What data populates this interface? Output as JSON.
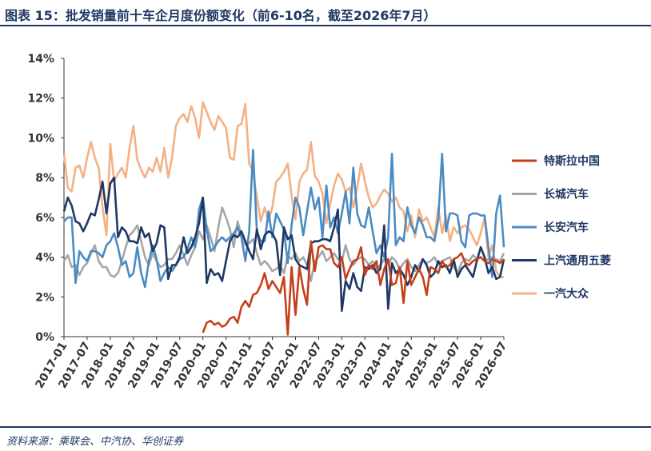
{
  "header": {
    "title": "图表 15：批发销量前十车企月度份额变化（前6-10名，截至2026年7月）"
  },
  "footer": {
    "source": "资料来源：乘联会、中汽协、华创证券"
  },
  "chart_data": {
    "type": "line",
    "title": "图表 15：批发销量前十车企月度份额变化（前6-10名，截至2026年7月）",
    "xlabel": "",
    "ylabel": "",
    "ylim": [
      0,
      14
    ],
    "yticks": [
      0,
      2,
      4,
      6,
      8,
      10,
      12,
      14
    ],
    "ytick_format": "%",
    "x_start": "2017-01",
    "n_months": 115,
    "xtick_labels": [
      "2017-01",
      "2017-07",
      "2018-01",
      "2018-07",
      "2019-01",
      "2019-07",
      "2020-01",
      "2020-07",
      "2021-01",
      "2021-07",
      "2022-01",
      "2022-07",
      "2023-01",
      "2023-07",
      "2024-01",
      "2024-07",
      "2025-01",
      "2025-07",
      "2026-01",
      "2026-07"
    ],
    "grid": false,
    "legend_position": "right",
    "series": [
      {
        "name": "特斯拉中国",
        "color": "#c5401a",
        "start_index": 36,
        "values": [
          0.2,
          0.7,
          0.8,
          0.6,
          0.7,
          0.5,
          0.6,
          0.9,
          1.0,
          0.7,
          1.5,
          1.8,
          1.5,
          2.1,
          2.2,
          2.6,
          3.2,
          2.4,
          2.8,
          2.5,
          2.2,
          3.0,
          0.1,
          3.5,
          1.1,
          3.5,
          2.4,
          1.6,
          4.8,
          3.3,
          4.5,
          4.6,
          4.4,
          4.4,
          3.7,
          3.5,
          4.0,
          2.9,
          3.4,
          3.8,
          3.9,
          4.5,
          3.1,
          3.6,
          3.4,
          3.8,
          2.6,
          3.4,
          3.9,
          2.6,
          2.7,
          3.5,
          1.7,
          3.8,
          2.6,
          3.0,
          3.4,
          3.0,
          2.1,
          3.5,
          3.4,
          3.2,
          3.8,
          3.5,
          3.6,
          3.9,
          4.0,
          4.2,
          3.7,
          3.6,
          3.8,
          3.9,
          4.0,
          3.8,
          3.7,
          3.9,
          3.8,
          3.7,
          3.9
        ]
      },
      {
        "name": "长城汽车",
        "color": "#a6a6a6",
        "start_index": 0,
        "values": [
          3.8,
          4.1,
          3.5,
          3.6,
          3.1,
          3.5,
          3.7,
          4.2,
          4.6,
          3.8,
          3.5,
          3.5,
          3.1,
          3.0,
          3.2,
          3.8,
          4.5,
          5.1,
          5.3,
          5.6,
          4.8,
          4.0,
          3.6,
          4.2,
          3.8,
          3.5,
          3.6,
          3.9,
          3.9,
          4.2,
          4.6,
          4.1,
          3.6,
          4.1,
          4.5,
          5.3,
          4.9,
          5.6,
          5.0,
          4.3,
          5.5,
          6.5,
          6.0,
          5.4,
          4.5,
          5.8,
          5.1,
          4.6,
          4.7,
          4.9,
          4.2,
          3.6,
          3.8,
          3.6,
          3.3,
          3.4,
          3.6,
          3.2,
          4.1,
          3.9,
          4.2,
          3.8,
          4.0,
          3.6,
          2.8,
          3.8,
          4.0,
          4.3,
          3.8,
          4.0,
          4.2,
          3.9,
          3.8,
          4.6,
          3.9,
          3.6,
          3.9,
          4.0,
          3.9,
          3.6,
          3.8,
          3.4,
          3.6,
          3.9,
          3.6,
          4.0,
          3.8,
          3.4,
          3.7,
          3.9,
          3.5,
          3.3,
          3.6,
          3.9,
          3.7,
          3.8,
          4.0,
          3.6,
          3.8,
          3.9,
          4.0,
          3.5,
          3.2,
          3.7,
          3.9,
          3.8,
          4.1,
          3.9,
          4.0,
          3.8,
          3.9,
          4.0,
          3.9,
          3.8,
          4.2
        ]
      },
      {
        "name": "长安汽车",
        "color": "#4a8bc4",
        "start_index": 0,
        "values": [
          5.8,
          6.0,
          6.0,
          2.7,
          4.3,
          4.0,
          3.8,
          4.3,
          4.3,
          4.2,
          4.0,
          4.6,
          4.8,
          5.2,
          4.5,
          3.6,
          3.8,
          3.0,
          3.2,
          4.5,
          3.2,
          2.5,
          3.8,
          4.6,
          3.9,
          2.8,
          3.2,
          3.5,
          3.3,
          3.6,
          3.9,
          4.0,
          4.4,
          5.0,
          4.5,
          6.4,
          7.0,
          5.4,
          4.3,
          4.5,
          4.8,
          5.0,
          4.8,
          5.0,
          5.2,
          5.5,
          5.0,
          3.8,
          5.3,
          9.4,
          5.3,
          4.8,
          4.8,
          6.3,
          5.0,
          6.2,
          5.8,
          5.4,
          3.7,
          5.6,
          7.0,
          6.5,
          5.1,
          6.3,
          7.5,
          6.4,
          7.0,
          5.0,
          7.6,
          5.5,
          6.0,
          5.2,
          6.2,
          7.3,
          5.7,
          8.5,
          6.2,
          5.6,
          5.5,
          6.5,
          5.3,
          4.2,
          4.6,
          4.0,
          5.0,
          9.2,
          4.6,
          5.0,
          4.8,
          6.5,
          5.6,
          5.2,
          6.0,
          5.6,
          5.0,
          5.0,
          4.8,
          5.9,
          9.2,
          5.3,
          6.2,
          6.2,
          6.1,
          4.8,
          4.5,
          6.1,
          6.2,
          6.2,
          6.1,
          6.1,
          4.5,
          3.0,
          6.2,
          7.1,
          4.5
        ]
      },
      {
        "name": "上汽通用五菱",
        "color": "#1f3864",
        "start_index": 0,
        "values": [
          6.3,
          7.0,
          6.6,
          5.8,
          5.7,
          5.3,
          5.7,
          6.2,
          6.1,
          6.9,
          7.8,
          6.2,
          7.7,
          8.0,
          5.0,
          5.5,
          5.3,
          4.8,
          4.8,
          4.7,
          5.5,
          5.0,
          5.2,
          4.3,
          4.7,
          5.6,
          5.5,
          2.9,
          3.6,
          3.6,
          4.0,
          5.0,
          4.2,
          4.5,
          5.0,
          5.7,
          7.0,
          2.7,
          3.4,
          3.1,
          3.2,
          2.8,
          3.8,
          4.8,
          5.1,
          5.0,
          5.3,
          4.8,
          4.3,
          3.9,
          5.4,
          4.4,
          5.1,
          5.3,
          5.2,
          4.8,
          3.1,
          5.5,
          4.9,
          5.1,
          3.9,
          3.6,
          3.5,
          3.4,
          4.7,
          4.8,
          4.8,
          4.9,
          4.9,
          4.8,
          5.5,
          6.4,
          1.3,
          2.8,
          2.4,
          3.2,
          2.5,
          2.3,
          3.5,
          3.4,
          3.6,
          3.2,
          3.4,
          5.6,
          1.4,
          3.7,
          3.2,
          3.4,
          3.1,
          2.6,
          3.0,
          3.6,
          3.3,
          3.9,
          3.6,
          3.0,
          3.2,
          3.8,
          3.5,
          3.6,
          3.2,
          3.9,
          3.0,
          3.4,
          3.6,
          3.3,
          3.0,
          3.8,
          4.5,
          4.0,
          3.2,
          3.5,
          2.9,
          3.0,
          3.9
        ]
      },
      {
        "name": "一汽大众",
        "color": "#f4b183",
        "start_index": 0,
        "values": [
          9.2,
          7.5,
          7.3,
          8.5,
          8.6,
          8.0,
          9.0,
          9.8,
          9.0,
          8.5,
          6.5,
          5.1,
          9.7,
          7.8,
          8.2,
          8.5,
          8.0,
          9.5,
          10.6,
          8.9,
          8.4,
          8.0,
          8.5,
          8.3,
          9.0,
          8.3,
          9.5,
          8.0,
          9.0,
          10.6,
          11.0,
          11.2,
          10.8,
          11.6,
          11.0,
          10.0,
          11.8,
          11.3,
          10.8,
          10.4,
          11.1,
          10.8,
          10.5,
          9.0,
          8.9,
          10.6,
          10.7,
          11.7,
          8.7,
          8.3,
          7.0,
          5.8,
          6.5,
          5.8,
          6.5,
          7.8,
          8.0,
          8.3,
          8.7,
          7.1,
          5.9,
          7.8,
          8.2,
          8.4,
          9.8,
          8.1,
          7.8,
          7.2,
          5.7,
          6.7,
          7.6,
          8.2,
          7.9,
          7.3,
          7.5,
          6.5,
          7.5,
          8.7,
          7.8,
          7.0,
          6.5,
          6.7,
          7.1,
          7.4,
          7.2,
          6.8,
          7.0,
          6.5,
          6.3,
          5.3,
          6.1,
          5.0,
          6.4,
          5.8,
          6.0,
          5.5,
          5.0,
          6.5,
          5.2,
          6.1,
          4.8,
          5.5,
          5.2,
          5.5,
          5.6,
          5.4,
          5.0,
          4.6,
          5.2,
          6.0,
          4.0,
          4.6,
          3.3,
          3.0,
          3.0
        ]
      }
    ]
  }
}
